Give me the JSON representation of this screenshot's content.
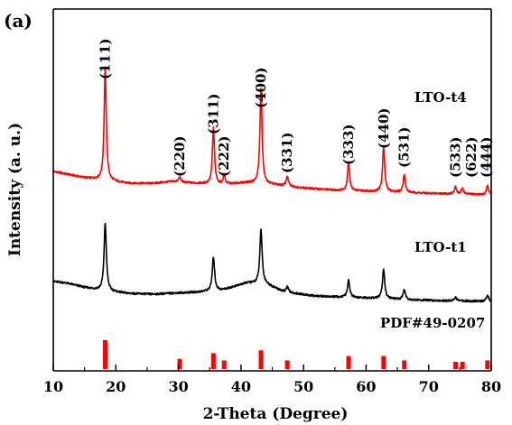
{
  "chart_data": {
    "type": "line",
    "panel_label": "(a)",
    "xlabel": "2-Theta (Degree)",
    "ylabel": "Intensity (a. u.)",
    "xlim": [
      10,
      80
    ],
    "xticks": [
      10,
      20,
      30,
      40,
      50,
      60,
      70,
      80
    ],
    "yticks_shown": false,
    "colors": {
      "LTO-t4": "#ff0000",
      "LTO-t1": "#000000",
      "PDF#49-0207": "#ff0000"
    },
    "series": [
      {
        "name": "LTO-t4",
        "baseline_profile": [
          [
            10,
            1.0
          ],
          [
            12,
            0.92
          ],
          [
            15,
            0.8
          ],
          [
            18,
            0.72
          ],
          [
            22,
            0.62
          ],
          [
            26,
            0.62
          ],
          [
            29,
            0.68
          ],
          [
            33,
            0.62
          ],
          [
            37,
            0.58
          ],
          [
            41,
            0.64
          ],
          [
            45,
            0.58
          ],
          [
            50,
            0.47
          ],
          [
            55,
            0.4
          ],
          [
            60,
            0.37
          ],
          [
            65,
            0.34
          ],
          [
            70,
            0.3
          ],
          [
            75,
            0.28
          ],
          [
            80,
            0.25
          ]
        ],
        "peaks": [
          {
            "x": 18.3,
            "y": 10.0
          },
          {
            "x": 30.2,
            "y": 0.45
          },
          {
            "x": 35.6,
            "y": 5.0
          },
          {
            "x": 37.3,
            "y": 0.8
          },
          {
            "x": 43.2,
            "y": 8.5
          },
          {
            "x": 47.4,
            "y": 0.9
          },
          {
            "x": 57.2,
            "y": 2.5
          },
          {
            "x": 62.8,
            "y": 4.0
          },
          {
            "x": 66.1,
            "y": 1.6
          },
          {
            "x": 74.3,
            "y": 0.6
          },
          {
            "x": 75.4,
            "y": 0.5
          },
          {
            "x": 79.4,
            "y": 0.8
          }
        ]
      },
      {
        "name": "LTO-t1",
        "baseline_profile": [
          [
            10,
            1.0
          ],
          [
            12,
            0.95
          ],
          [
            15,
            0.78
          ],
          [
            18,
            0.65
          ],
          [
            22,
            0.55
          ],
          [
            26,
            0.52
          ],
          [
            29,
            0.56
          ],
          [
            33,
            0.6
          ],
          [
            37,
            0.68
          ],
          [
            41,
            0.95
          ],
          [
            44,
            0.9
          ],
          [
            47,
            0.6
          ],
          [
            52,
            0.45
          ],
          [
            57,
            0.4
          ],
          [
            62,
            0.36
          ],
          [
            68,
            0.3
          ],
          [
            74,
            0.27
          ],
          [
            80,
            0.25
          ]
        ],
        "peaks": [
          {
            "x": 18.3,
            "y": 6.0
          },
          {
            "x": 35.6,
            "y": 3.0
          },
          {
            "x": 43.2,
            "y": 4.8
          },
          {
            "x": 47.4,
            "y": 0.5
          },
          {
            "x": 57.2,
            "y": 1.5
          },
          {
            "x": 62.8,
            "y": 2.6
          },
          {
            "x": 66.1,
            "y": 0.9
          },
          {
            "x": 74.3,
            "y": 0.3
          },
          {
            "x": 79.4,
            "y": 0.5
          }
        ]
      }
    ],
    "reference": {
      "name": "PDF#49-0207",
      "lines": [
        {
          "x": 18.3,
          "y": 1.0
        },
        {
          "x": 30.2,
          "y": 0.35
        },
        {
          "x": 35.6,
          "y": 0.55
        },
        {
          "x": 37.3,
          "y": 0.3
        },
        {
          "x": 43.2,
          "y": 0.65
        },
        {
          "x": 47.4,
          "y": 0.3
        },
        {
          "x": 57.2,
          "y": 0.45
        },
        {
          "x": 62.8,
          "y": 0.45
        },
        {
          "x": 66.1,
          "y": 0.3
        },
        {
          "x": 74.3,
          "y": 0.25
        },
        {
          "x": 75.4,
          "y": 0.25
        },
        {
          "x": 79.4,
          "y": 0.3
        }
      ]
    },
    "annotations": [
      {
        "text": "(111)",
        "x": 18.3
      },
      {
        "text": "(220)",
        "x": 30.2
      },
      {
        "text": "(311)",
        "x": 35.6
      },
      {
        "text": "(222)",
        "x": 37.3
      },
      {
        "text": "(400)",
        "x": 43.2
      },
      {
        "text": "(331)",
        "x": 47.4
      },
      {
        "text": "(333)",
        "x": 57.2
      },
      {
        "text": "(440)",
        "x": 62.8
      },
      {
        "text": "(531)",
        "x": 66.1
      },
      {
        "text": "(533)",
        "x": 74.3
      },
      {
        "text": "(622)",
        "x": 76.8
      },
      {
        "text": "(444)",
        "x": 79.2
      }
    ]
  }
}
